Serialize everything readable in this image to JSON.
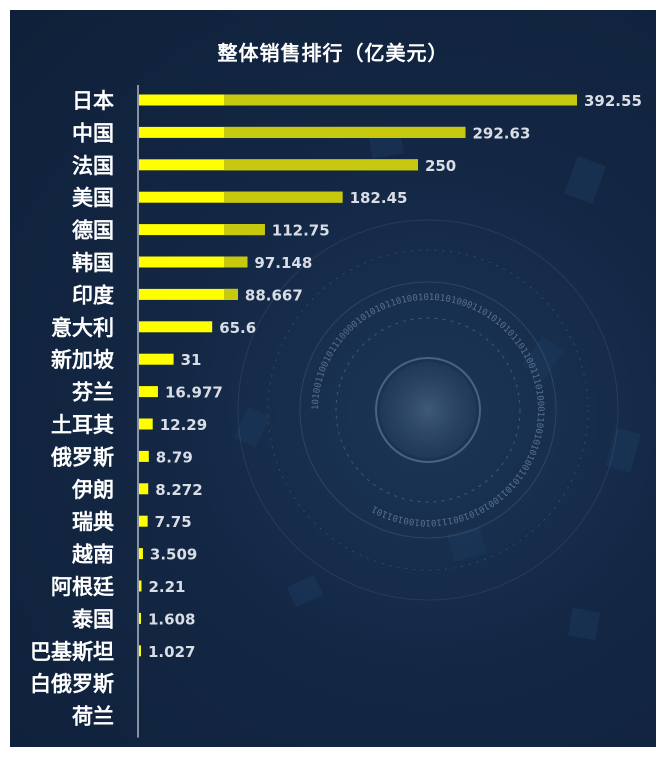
{
  "chart_data": {
    "type": "bar",
    "orientation": "horizontal",
    "title": "整体销售排行（亿美元）",
    "xlabel": "",
    "ylabel": "",
    "xlim": [
      0,
      392.55
    ],
    "grid": false,
    "legend": "none",
    "categories": [
      "日本",
      "中国",
      "法国",
      "美国",
      "德国",
      "韩国",
      "印度",
      "意大利",
      "新加坡",
      "芬兰",
      "土耳其",
      "俄罗斯",
      "伊朗",
      "瑞典",
      "越南",
      "阿根廷",
      "泰国",
      "巴基斯坦",
      "白俄罗斯",
      "荷兰"
    ],
    "values": [
      392.55,
      292.63,
      250,
      182.45,
      112.75,
      97.148,
      88.667,
      65.6,
      31,
      16.977,
      12.29,
      8.79,
      8.272,
      7.75,
      3.509,
      2.21,
      1.608,
      1.027,
      null,
      null
    ],
    "value_labels": [
      "392.55",
      "292.63",
      "250",
      "182.45",
      "112.75",
      "97.148",
      "88.667",
      "65.6",
      "31",
      "16.977",
      "12.29",
      "8.79",
      "8.272",
      "7.75",
      "3.509",
      "2.21",
      "1.608",
      "1.027",
      "",
      ""
    ],
    "colors": {
      "bar": "#ffff00",
      "bar_shade": "#c6c90e",
      "label": "#d8dde6",
      "category": "#ffffff",
      "axis": "#ffffff"
    }
  },
  "background": {
    "binary_ring_text": "1010011001011100001010101101001010101000110101010110110011101000110010101001101011001010100111010100101101"
  }
}
